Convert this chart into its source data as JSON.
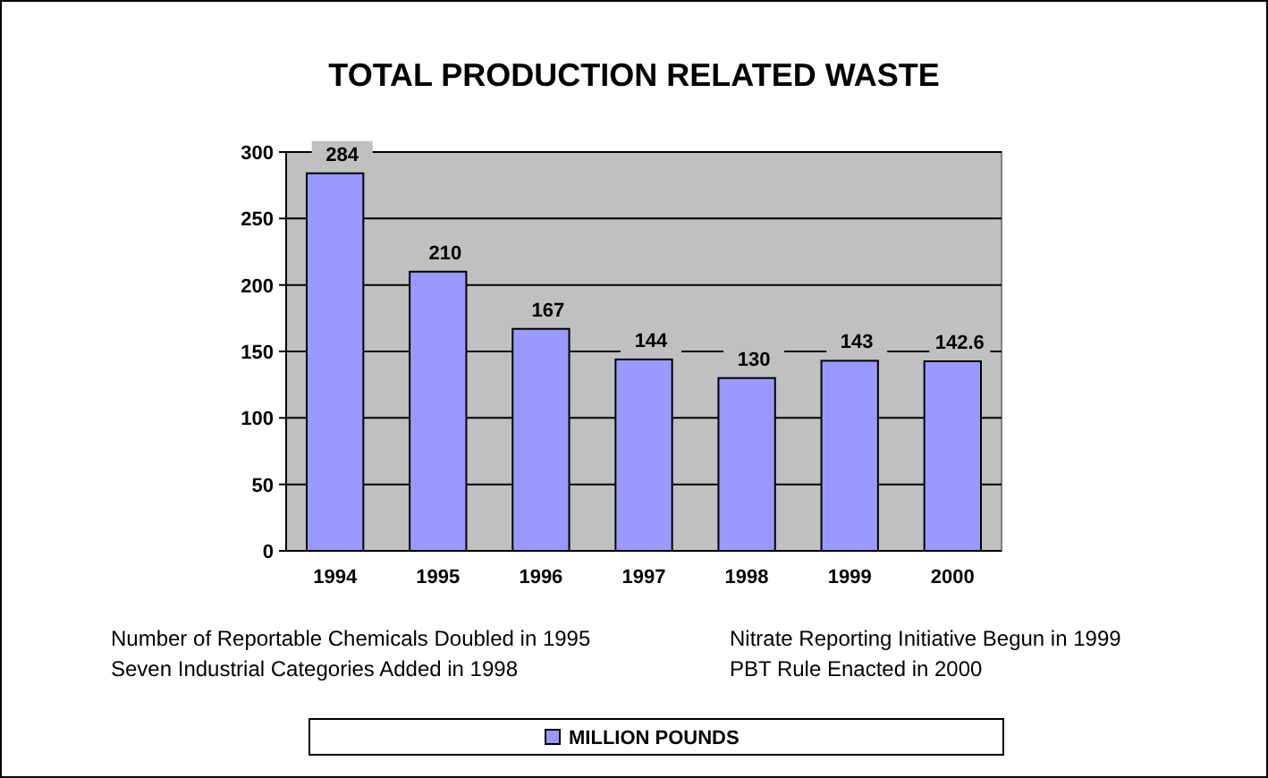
{
  "chart_data": {
    "type": "bar",
    "title": "TOTAL PRODUCTION RELATED WASTE",
    "categories": [
      "1994",
      "1995",
      "1996",
      "1997",
      "1998",
      "1999",
      "2000"
    ],
    "series": [
      {
        "name": "MILLION POUNDS",
        "color": "#9999ff",
        "values": [
          284,
          210,
          167,
          144,
          130,
          143,
          142.6
        ]
      }
    ],
    "ylim": [
      0,
      300
    ],
    "yticks": [
      0,
      50,
      100,
      150,
      200,
      250,
      300
    ],
    "grid": "y",
    "data_labels": true,
    "legend": "bottom",
    "annotations": [
      "Number of Reportable Chemicals Doubled in 1995",
      "Seven Industrial Categories Added in 1998",
      "Nitrate Reporting Initiative Begun in 1999",
      "PBT Rule Enacted in 2000"
    ]
  }
}
